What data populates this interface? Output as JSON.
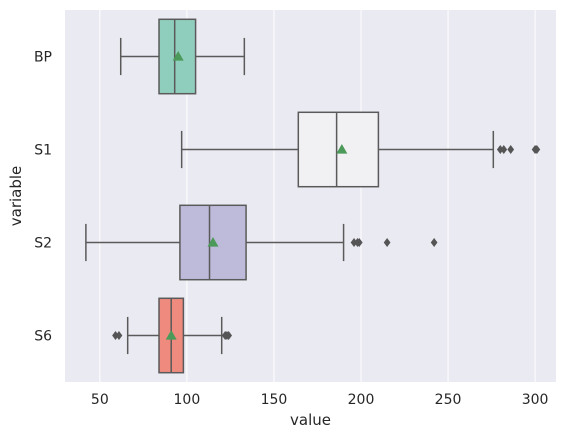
{
  "chart_data": {
    "type": "boxplot",
    "orientation": "horizontal",
    "xlabel": "value",
    "ylabel": "variable",
    "xlim": [
      30,
      312
    ],
    "x_ticks": [
      50,
      100,
      150,
      200,
      250,
      300
    ],
    "x_tick_labels": [
      "50",
      "100",
      "150",
      "200",
      "250",
      "300"
    ],
    "grid": "vertical",
    "background_color": "#eaeaf2",
    "grid_color": "#ffffff",
    "box_edge_color": "#5a5a5a",
    "mean_marker_color": "#4c9a59",
    "outlier_color": "#555555",
    "categories": [
      "BP",
      "S1",
      "S2",
      "S6"
    ],
    "series": [
      {
        "category": "BP",
        "min": 62,
        "q1": 84,
        "median": 93,
        "q3": 105,
        "max": 133,
        "mean": 95,
        "outliers": [],
        "color": "#8fcdbd"
      },
      {
        "category": "S1",
        "min": 97,
        "q1": 164,
        "median": 186,
        "q3": 210,
        "max": 276,
        "mean": 189,
        "outliers": [
          280,
          282,
          286,
          300,
          301
        ],
        "color": "#f1f1f4"
      },
      {
        "category": "S2",
        "min": 42,
        "q1": 96,
        "median": 113,
        "q3": 134,
        "max": 190,
        "mean": 115,
        "outliers": [
          196,
          198,
          199,
          215,
          242
        ],
        "color": "#bebada"
      },
      {
        "category": "S6",
        "min": 66,
        "q1": 84,
        "median": 91,
        "q3": 98,
        "max": 120,
        "mean": 91,
        "outliers": [
          59,
          61,
          122,
          123,
          124
        ],
        "color": "#ee8a7e"
      }
    ]
  }
}
